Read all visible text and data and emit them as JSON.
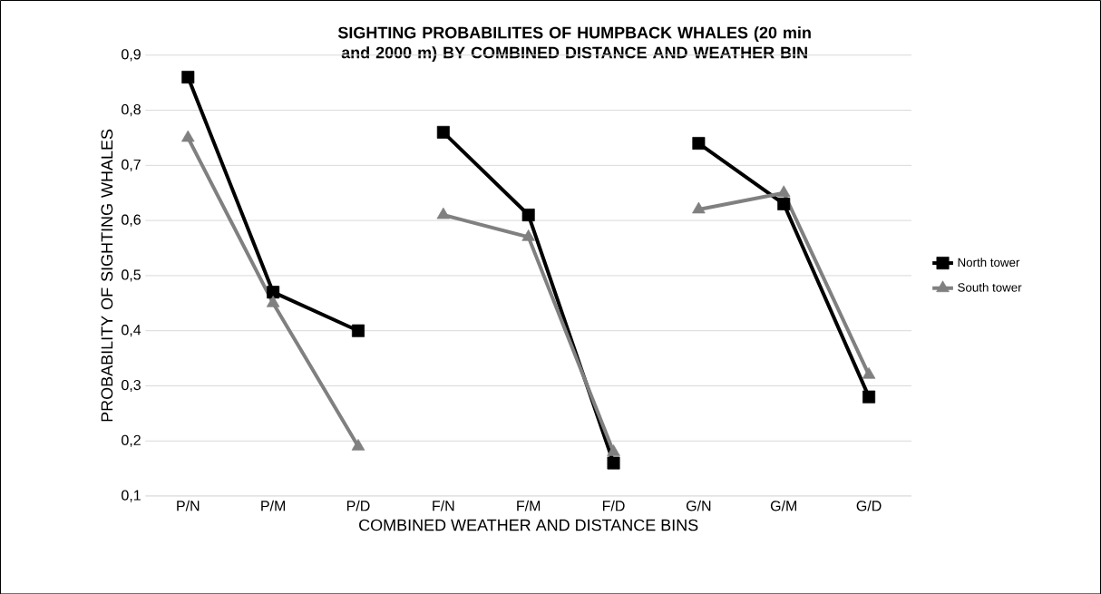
{
  "chart_data": {
    "type": "line",
    "title": "SIGHTING PROBABILITES OF HUMPBACK WHALES (20 min and 2000 m) BY COMBINED DISTANCE AND WEATHER BIN",
    "xlabel": "COMBINED WEATHER AND DISTANCE BINS",
    "ylabel": "PROBABILITY OF SIGHTING WHALES",
    "categories": [
      "P/N",
      "P/M",
      "P/D",
      "F/N",
      "F/M",
      "F/D",
      "G/N",
      "G/M",
      "G/D"
    ],
    "series": [
      {
        "name": "North tower",
        "color": "#000000",
        "marker": "square",
        "values": [
          0.86,
          0.47,
          0.4,
          null,
          null,
          null,
          null,
          null,
          null
        ]
      },
      {
        "name": "South tower",
        "color": "#808080",
        "marker": "triangle",
        "values": [
          0.75,
          0.45,
          0.19,
          null,
          null,
          null,
          null,
          null,
          null
        ]
      },
      {
        "color": "#000000",
        "marker": "square",
        "values": [
          null,
          null,
          null,
          0.76,
          0.61,
          0.16,
          null,
          null,
          null
        ]
      },
      {
        "color": "#808080",
        "marker": "triangle",
        "values": [
          null,
          null,
          null,
          0.61,
          0.57,
          0.18,
          null,
          null,
          null
        ]
      },
      {
        "color": "#000000",
        "marker": "square",
        "values": [
          null,
          null,
          null,
          null,
          null,
          null,
          0.74,
          0.63,
          0.28
        ]
      },
      {
        "color": "#808080",
        "marker": "triangle",
        "values": [
          null,
          null,
          null,
          null,
          null,
          null,
          0.62,
          0.65,
          0.32
        ]
      }
    ],
    "ylim": [
      0.1,
      0.9
    ],
    "yticks": [
      {
        "value": 0.1,
        "label": "0,1"
      },
      {
        "value": 0.2,
        "label": "0,2"
      },
      {
        "value": 0.3,
        "label": "0,3"
      },
      {
        "value": 0.4,
        "label": "0,4"
      },
      {
        "value": 0.5,
        "label": "0,5"
      },
      {
        "value": 0.6,
        "label": "0,6"
      },
      {
        "value": 0.7,
        "label": "0,7"
      },
      {
        "value": 0.8,
        "label": "0,8"
      },
      {
        "value": 0.9,
        "label": "0,9"
      }
    ],
    "grid": "y",
    "legend": "right"
  }
}
